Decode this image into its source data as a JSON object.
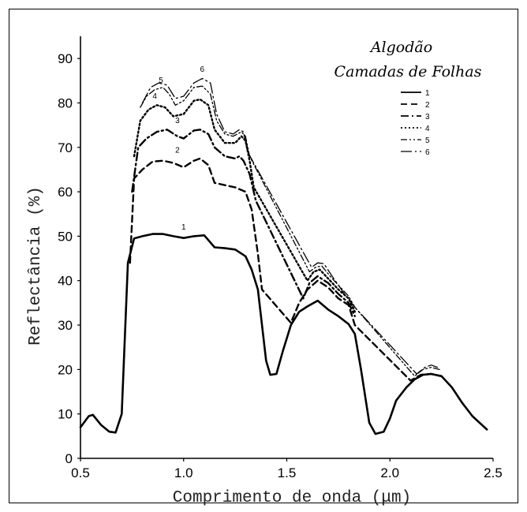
{
  "chart_data": {
    "type": "line",
    "legend_title": [
      "Algodão",
      "Camadas de Folhas"
    ],
    "legend_position": "top-right",
    "xlabel": "Comprimento de onda (μm)",
    "ylabel": "Reflectância (%)",
    "xlim": [
      0.5,
      2.5
    ],
    "ylim": [
      0,
      95
    ],
    "xticks": [
      "0.5",
      "1.0",
      "1.5",
      "2.0",
      "2.5"
    ],
    "yticks": [
      "0",
      "10",
      "20",
      "30",
      "40",
      "50",
      "60",
      "70",
      "80",
      "90"
    ],
    "grid": false,
    "series": [
      {
        "name": "1",
        "style": "solid",
        "x": [
          0.5,
          0.54,
          0.56,
          0.6,
          0.64,
          0.67,
          0.7,
          0.73,
          0.76,
          0.8,
          0.85,
          0.9,
          0.95,
          1.0,
          1.05,
          1.1,
          1.15,
          1.2,
          1.25,
          1.3,
          1.33,
          1.36,
          1.38,
          1.4,
          1.42,
          1.45,
          1.48,
          1.52,
          1.56,
          1.6,
          1.65,
          1.7,
          1.75,
          1.8,
          1.83,
          1.86,
          1.9,
          1.93,
          1.97,
          2.0,
          2.03,
          2.08,
          2.12,
          2.16,
          2.2,
          2.25,
          2.3,
          2.35,
          2.4,
          2.47
        ],
        "y": [
          7,
          9.5,
          9.8,
          7.5,
          6,
          5.8,
          10,
          44,
          49.5,
          50,
          50.5,
          50.5,
          50,
          49.6,
          50,
          50.2,
          47.5,
          47.3,
          47,
          45.5,
          42.5,
          38,
          30,
          22,
          18.8,
          19,
          24,
          30,
          33,
          34.2,
          35.5,
          33.5,
          32,
          30.2,
          28,
          20,
          8,
          5.5,
          6,
          9,
          13,
          16,
          17.8,
          18.8,
          19,
          18.5,
          16,
          12.5,
          9.5,
          6.5
        ],
        "label_at": [
          1.0,
          51.5
        ]
      },
      {
        "name": "2",
        "style": "dashed",
        "x": [
          0.74,
          0.76,
          0.8,
          0.85,
          0.9,
          0.95,
          1.0,
          1.05,
          1.08,
          1.12,
          1.15,
          1.2,
          1.25,
          1.3,
          1.33,
          1.36,
          1.38,
          1.52,
          1.56,
          1.6,
          1.65,
          1.7,
          1.75,
          1.8,
          1.83,
          2.1,
          2.15,
          2.2,
          2.25
        ],
        "y": [
          44,
          63,
          65,
          66.8,
          67,
          66.5,
          65.5,
          67,
          67.5,
          66,
          62,
          61.5,
          61,
          60,
          56,
          46,
          38,
          30.5,
          35,
          38,
          40,
          38.5,
          36,
          34.5,
          30,
          17.5,
          18.8,
          19,
          18.5
        ],
        "label_at": [
          0.97,
          68.8
        ]
      },
      {
        "name": "3",
        "style": "dash-dot",
        "x": [
          0.75,
          0.78,
          0.82,
          0.87,
          0.92,
          0.97,
          1.0,
          1.05,
          1.08,
          1.12,
          1.15,
          1.2,
          1.25,
          1.27,
          1.29,
          1.32,
          1.35,
          1.58,
          1.61,
          1.65,
          1.7,
          1.75,
          1.8,
          1.83
        ],
        "y": [
          60,
          70,
          72,
          73.5,
          74,
          72.5,
          72,
          73.8,
          74,
          73,
          70,
          68,
          67.5,
          68,
          67,
          64,
          58,
          36,
          39.5,
          41,
          39.5,
          37,
          35,
          32
        ],
        "label_at": [
          0.97,
          75.5
        ]
      },
      {
        "name": "4",
        "style": "dotted",
        "x": [
          0.76,
          0.79,
          0.83,
          0.87,
          0.91,
          0.95,
          1.0,
          1.05,
          1.08,
          1.12,
          1.15,
          1.2,
          1.25,
          1.28,
          1.3,
          1.32,
          1.34,
          1.6,
          1.63,
          1.66,
          1.7,
          1.75,
          1.8,
          1.83
        ],
        "y": [
          68,
          76,
          78.5,
          79.5,
          79,
          77,
          77.5,
          80.5,
          80.8,
          79.5,
          74,
          71,
          71,
          72.5,
          71.5,
          67,
          61,
          40,
          42,
          42.5,
          40.5,
          38,
          36,
          33
        ],
        "label_at": [
          0.86,
          81
        ]
      },
      {
        "name": "5",
        "style": "dash-dot-dot",
        "x": [
          0.79,
          0.82,
          0.86,
          0.9,
          0.93,
          0.96,
          1.0,
          1.05,
          1.09,
          1.13,
          1.16,
          1.2,
          1.24,
          1.28,
          1.3,
          1.32,
          1.61,
          1.64,
          1.67,
          1.71,
          1.76,
          1.8,
          1.83,
          2.12,
          2.16,
          2.2,
          2.24
        ],
        "y": [
          79,
          81.5,
          83,
          83.5,
          82,
          79.5,
          80.5,
          83.5,
          83.8,
          82,
          76,
          73,
          72.5,
          73.5,
          72.5,
          68,
          42,
          43,
          43.3,
          41,
          38.5,
          36.5,
          34,
          18.5,
          20,
          20.5,
          20
        ],
        "label_at": [
          0.89,
          84.5
        ]
      },
      {
        "name": "6",
        "style": "long-dash-dot",
        "x": [
          0.8,
          0.84,
          0.88,
          0.92,
          0.96,
          1.0,
          1.05,
          1.09,
          1.13,
          1.16,
          1.2,
          1.24,
          1.27,
          1.29,
          1.31,
          1.62,
          1.65,
          1.68,
          1.72,
          1.78,
          1.83,
          2.13,
          2.17,
          2.2,
          2.23
        ],
        "y": [
          80,
          83.5,
          84.5,
          84,
          81,
          81.5,
          84.5,
          85.5,
          84.5,
          77.5,
          73.5,
          73,
          74,
          73.5,
          69,
          43,
          44,
          43.8,
          41,
          37,
          34,
          19,
          20.5,
          21,
          20.5
        ],
        "label_at": [
          1.09,
          87
        ]
      }
    ]
  }
}
